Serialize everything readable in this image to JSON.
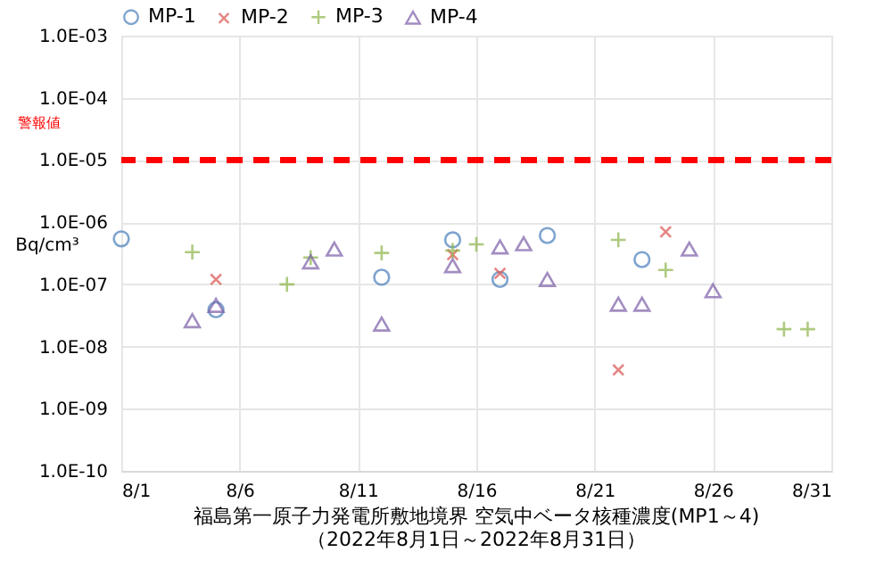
{
  "chart_data": {
    "type": "scatter",
    "title": "福島第一原子力発電所敷地境界  空気中ベータ核種濃度(MP1～4)",
    "subtitle": "（2022年8月1日～2022年8月31日）",
    "ylabel": "Bq/cm³",
    "log": "y",
    "grid": true,
    "legend": "top",
    "xlim": [
      "2022-08-01",
      "2022-08-31"
    ],
    "xticks": [
      {
        "value": "2022-08-01",
        "label": "8/1"
      },
      {
        "value": "2022-08-06",
        "label": "8/6"
      },
      {
        "value": "2022-08-11",
        "label": "8/11"
      },
      {
        "value": "2022-08-16",
        "label": "8/16"
      },
      {
        "value": "2022-08-21",
        "label": "8/21"
      },
      {
        "value": "2022-08-26",
        "label": "8/26"
      },
      {
        "value": "2022-08-31",
        "label": "8/31"
      }
    ],
    "ylim": [
      1e-10,
      0.001
    ],
    "yticks": [
      {
        "value": 1e-10,
        "label": "1.0E-10"
      },
      {
        "value": 1e-09,
        "label": "1.0E-09"
      },
      {
        "value": 1e-08,
        "label": "1.0E-08"
      },
      {
        "value": 1e-07,
        "label": "1.0E-07"
      },
      {
        "value": 1e-06,
        "label": "1.0E-06"
      },
      {
        "value": 1e-05,
        "label": "1.0E-05"
      },
      {
        "value": 0.0001,
        "label": "1.0E-04"
      },
      {
        "value": 0.001,
        "label": "1.0E-03"
      }
    ],
    "ref_lines": [
      {
        "axis": "y",
        "value": 1e-05,
        "label": "警報値",
        "color": "#ff0000",
        "line_style": "dashed"
      }
    ],
    "series": [
      {
        "name": "MP-1",
        "color": "#4a7ebb",
        "marker": "circle",
        "x": [
          "2022-08-01",
          "2022-08-05",
          "2022-08-12",
          "2022-08-15",
          "2022-08-17",
          "2022-08-19",
          "2022-08-23"
        ],
        "values": [
          5.4e-07,
          3.9e-08,
          1.3e-07,
          5.2e-07,
          1.2e-07,
          6.1e-07,
          2.5e-07
        ]
      },
      {
        "name": "MP-2",
        "color": "#d9534f",
        "marker": "cross",
        "x": [
          "2022-08-05",
          "2022-08-15",
          "2022-08-17",
          "2022-08-22",
          "2022-08-24"
        ],
        "values": [
          1.2e-07,
          3e-07,
          1.5e-07,
          4.2e-09,
          7e-07
        ]
      },
      {
        "name": "MP-3",
        "color": "#8db54a",
        "marker": "plus",
        "x": [
          "2022-08-04",
          "2022-08-08",
          "2022-08-09",
          "2022-08-12",
          "2022-08-15",
          "2022-08-16",
          "2022-08-22",
          "2022-08-24",
          "2022-08-29",
          "2022-08-30"
        ],
        "values": [
          3.3e-07,
          1e-07,
          2.7e-07,
          3.2e-07,
          3.5e-07,
          4.4e-07,
          5.2e-07,
          1.7e-07,
          1.9e-08,
          1.9e-08
        ]
      },
      {
        "name": "MP-4",
        "color": "#7b5ea7",
        "marker": "triangle",
        "x": [
          "2022-08-04",
          "2022-08-05",
          "2022-08-09",
          "2022-08-10",
          "2022-08-12",
          "2022-08-15",
          "2022-08-17",
          "2022-08-18",
          "2022-08-19",
          "2022-08-22",
          "2022-08-23",
          "2022-08-25",
          "2022-08-26"
        ],
        "values": [
          2.6e-08,
          4.6e-08,
          2.3e-07,
          3.7e-07,
          2.3e-08,
          2e-07,
          4e-07,
          4.5e-07,
          1.2e-07,
          4.8e-08,
          4.8e-08,
          3.7e-07,
          7.9e-08
        ]
      }
    ]
  }
}
